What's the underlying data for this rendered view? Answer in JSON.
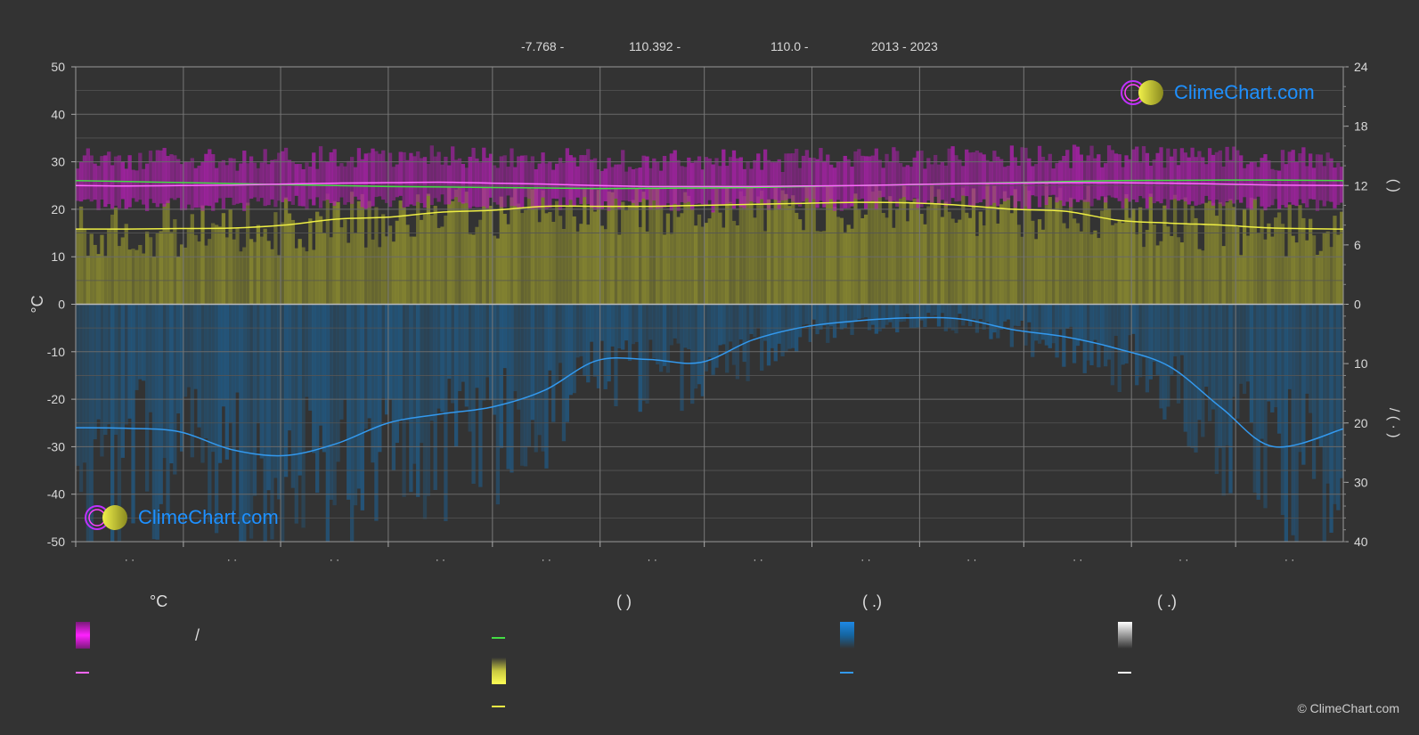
{
  "header": {
    "lat": "-7.768 -",
    "lon": "110.392 -",
    "elev": "110.0 -",
    "years": "2013 - 2023"
  },
  "logo": {
    "text": "ClimeChart.com"
  },
  "copyright": "© ClimeChart.com",
  "legend": {
    "col1_title": "°C",
    "col2_title": "(          )",
    "col3_title": "(   .)",
    "col4_title": "(   .)",
    "slash": "/"
  },
  "colors": {
    "background": "#333333",
    "temp_band": "#b020b0",
    "sun_band": "#8a8a30",
    "rain_band": "#1f5f8f",
    "daylight_line": "#44dd44",
    "sunshine_line": "#eeee44",
    "rain_line": "#3399ee",
    "temp_line": "#ff66ff"
  },
  "chart_data": {
    "type": "area",
    "title": "",
    "xlabel": "",
    "ylabel_left": "°C",
    "ylabel_right_top": "(    )",
    "ylabel_right_bottom": "/   (   ·   )",
    "ylim_left": [
      -50,
      50
    ],
    "yticks_left": [
      50,
      40,
      30,
      20,
      10,
      0,
      -10,
      -20,
      -30,
      -40,
      -50
    ],
    "yticks_right_top": [
      24,
      18,
      12,
      6,
      0
    ],
    "yticks_right_bottom": [
      10,
      20,
      30,
      40
    ],
    "x_month_labels": [
      "· ·",
      "· ·",
      "· ·",
      "· ·",
      "· ·",
      "· ·",
      "· ·",
      "· ·",
      "· ·",
      "· ·",
      "· ·",
      "· ·"
    ],
    "grid": true,
    "x_days": [
      0,
      15,
      30,
      45,
      60,
      75,
      90,
      105,
      120,
      135,
      150,
      165,
      180,
      195,
      210,
      225,
      240,
      255,
      270,
      285,
      300,
      315,
      330,
      345,
      365
    ],
    "series": [
      {
        "key": "daylight_hours",
        "values": [
          12.5,
          12.4,
          12.3,
          12.2,
          12.1,
          12.0,
          11.9,
          11.85,
          11.8,
          11.75,
          11.7,
          11.72,
          11.75,
          11.8,
          11.9,
          12.0,
          12.1,
          12.2,
          12.3,
          12.4,
          12.5,
          12.52,
          12.55,
          12.55,
          12.5
        ]
      },
      {
        "key": "temp_mean",
        "values": [
          25.0,
          24.9,
          25.0,
          25.1,
          25.3,
          25.5,
          25.6,
          25.7,
          25.5,
          25.3,
          25.0,
          24.8,
          24.8,
          24.8,
          24.9,
          25.0,
          25.2,
          25.4,
          25.5,
          25.6,
          25.6,
          25.5,
          25.3,
          25.1,
          25.0
        ]
      },
      {
        "key": "sunshine_hours",
        "values": [
          7.6,
          7.6,
          7.65,
          7.7,
          8.0,
          8.6,
          8.8,
          9.3,
          9.5,
          9.9,
          9.9,
          9.9,
          10.0,
          10.1,
          10.2,
          10.3,
          10.25,
          10.0,
          9.6,
          9.4,
          8.5,
          8.2,
          8.0,
          7.7,
          7.6
        ]
      },
      {
        "key": "precip_mm",
        "values": [
          20.8,
          20.9,
          21.5,
          24.5,
          25.5,
          23.5,
          20.0,
          18.5,
          17.3,
          14.5,
          9.5,
          9.3,
          9.8,
          6.0,
          3.8,
          2.8,
          2.3,
          2.5,
          4.3,
          5.5,
          7.5,
          10.5,
          17.5,
          24.0,
          21.0
        ]
      }
    ]
  }
}
